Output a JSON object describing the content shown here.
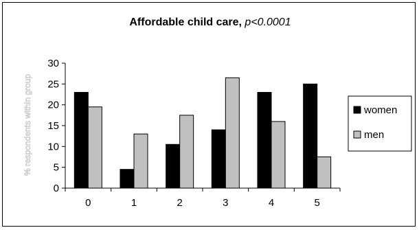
{
  "chart_data": {
    "type": "bar",
    "title": "Affordable child care, ",
    "title_suffix": "p<0.0001",
    "xlabel": "",
    "ylabel": "% respondents within group",
    "categories": [
      "0",
      "1",
      "2",
      "3",
      "4",
      "5"
    ],
    "series": [
      {
        "name": "women",
        "color": "#000000",
        "values": [
          23,
          4.5,
          10.5,
          14,
          23,
          25
        ]
      },
      {
        "name": "men",
        "color": "#c0c0c0",
        "values": [
          19.5,
          13,
          17.5,
          26.5,
          16,
          7.5
        ]
      }
    ],
    "ylim": [
      0,
      30
    ],
    "yticks": [
      0,
      5,
      10,
      15,
      20,
      25,
      30
    ],
    "legend_position": "right",
    "grid": false
  }
}
